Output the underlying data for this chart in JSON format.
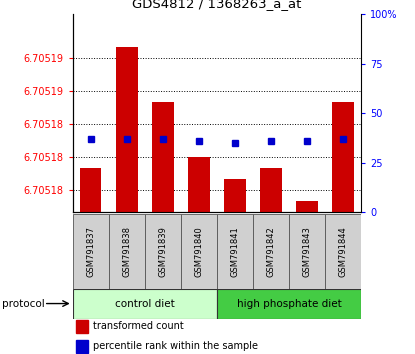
{
  "title": "GDS4812 / 1368263_a_at",
  "samples": [
    "GSM791837",
    "GSM791838",
    "GSM791839",
    "GSM791840",
    "GSM791841",
    "GSM791842",
    "GSM791843",
    "GSM791844"
  ],
  "transformed_counts": [
    6.705182,
    6.705193,
    6.705188,
    6.705183,
    6.705181,
    6.705182,
    6.705179,
    6.705188
  ],
  "percentile_ranks": [
    37,
    37,
    37,
    36,
    35,
    36,
    36,
    37
  ],
  "ymin": 6.705178,
  "ymax": 6.705196,
  "y_axis_ticks": [
    6.70518,
    6.705183,
    6.705186,
    6.705189,
    6.705192
  ],
  "y_axis_labels": [
    "6.70518",
    "6.70518",
    "6.70518",
    "6.70519",
    "6.70519"
  ],
  "bar_color": "#cc0000",
  "dot_color": "#0000cc",
  "bar_width": 0.6,
  "group_colors": [
    "#ccffcc",
    "#44cc44"
  ],
  "groups": [
    {
      "label": "control diet",
      "start": 0,
      "end": 4
    },
    {
      "label": "high phosphate diet",
      "start": 4,
      "end": 8
    }
  ],
  "protocol_label": "protocol",
  "legend_items": [
    {
      "label": "transformed count",
      "color": "#cc0000"
    },
    {
      "label": "percentile rank within the sample",
      "color": "#0000cc"
    }
  ],
  "right_ytick_percs": [
    0,
    25,
    50,
    75,
    100
  ],
  "right_ylabels": [
    "0",
    "25",
    "50",
    "75",
    "100%"
  ]
}
